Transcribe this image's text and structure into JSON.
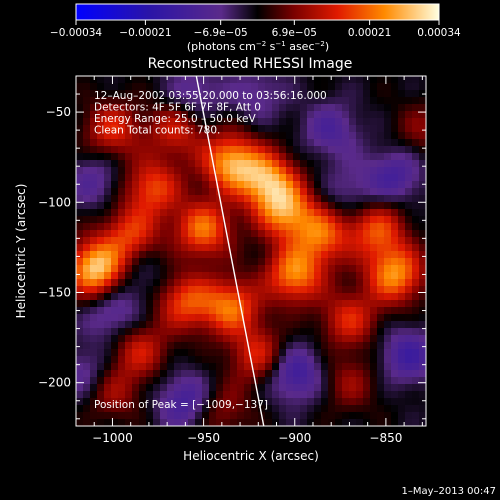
{
  "chart_data": {
    "type": "heatmap",
    "title": "Reconstructed RHESSI Image",
    "xlabel": "Heliocentric X (arcsec)",
    "ylabel": "Heliocentric Y (arcsec)",
    "xlim": [
      -1020,
      -828
    ],
    "ylim": [
      -224,
      -30
    ],
    "xticks": [
      -1000,
      -950,
      -900,
      -850
    ],
    "yticks": [
      -50,
      -100,
      -150,
      -200
    ],
    "xtick_labels": [
      "−1000",
      "−950",
      "−900",
      "−850"
    ],
    "ytick_labels": [
      "−50",
      "−100",
      "−150",
      "−200"
    ],
    "annotations": [
      "12–Aug–2002 03:55:20.000 to 03:56:16.000",
      "Detectors: 4F 5F 6F 7F 8F, Att 0",
      "Energy Range: 25.0 – 50.0 keV",
      "Clean    Total counts: 780."
    ],
    "peak_label": "Position of Peak = [−1009,−137]",
    "peak": [
      -1009,
      -137
    ],
    "limb": [
      [
        -954,
        -30
      ],
      [
        -917,
        -224
      ]
    ],
    "colorbar": {
      "range": [
        -0.00034,
        0.00034
      ],
      "ticks": [
        -0.00034,
        -0.00021,
        -6.9e-05,
        6.9e-05,
        0.00021,
        0.00034
      ],
      "tick_labels": [
        "−0.00034",
        "−0.00021",
        "−6.9e−05",
        "6.9e−05",
        "0.00021",
        "0.00034"
      ],
      "unit": "(photons cm",
      "unit_exp1": "−2",
      "unit_mid": " s",
      "unit_exp2": "−1",
      "unit_end": " asec",
      "unit_exp3": "−2",
      "unit_close": ")"
    },
    "sources": [
      {
        "x": -1009,
        "y": -137,
        "amp": 1.0
      },
      {
        "x": -935,
        "y": -78,
        "amp": 0.85
      },
      {
        "x": -915,
        "y": -88,
        "amp": 0.8
      },
      {
        "x": -905,
        "y": -105,
        "amp": 0.75
      },
      {
        "x": -950,
        "y": -115,
        "amp": 0.72
      },
      {
        "x": -900,
        "y": -140,
        "amp": 0.78
      },
      {
        "x": -885,
        "y": -118,
        "amp": 0.65
      },
      {
        "x": -935,
        "y": -158,
        "amp": 0.7
      },
      {
        "x": -960,
        "y": -155,
        "amp": 0.6
      },
      {
        "x": -978,
        "y": -92,
        "amp": 0.6
      },
      {
        "x": -990,
        "y": -118,
        "amp": 0.55
      },
      {
        "x": -1000,
        "y": -60,
        "amp": 0.5
      },
      {
        "x": -965,
        "y": -60,
        "amp": 0.45
      },
      {
        "x": -845,
        "y": -140,
        "amp": 0.8
      },
      {
        "x": -855,
        "y": -115,
        "amp": 0.6
      },
      {
        "x": -870,
        "y": -165,
        "amp": 0.5
      },
      {
        "x": -920,
        "y": -185,
        "amp": 0.5
      },
      {
        "x": -985,
        "y": -182,
        "amp": 0.45
      },
      {
        "x": -1000,
        "y": -205,
        "amp": 0.35
      },
      {
        "x": -870,
        "y": -200,
        "amp": 0.3
      },
      {
        "x": -940,
        "y": -215,
        "amp": 0.3
      },
      {
        "x": -830,
        "y": -60,
        "amp": 0.25
      },
      {
        "x": -1010,
        "y": -88,
        "amp": -0.3
      },
      {
        "x": -960,
        "y": -210,
        "amp": -0.45
      },
      {
        "x": -900,
        "y": -195,
        "amp": -0.5
      },
      {
        "x": -845,
        "y": -85,
        "amp": -0.4
      },
      {
        "x": -838,
        "y": -185,
        "amp": -0.45
      },
      {
        "x": -880,
        "y": -60,
        "amp": -0.35
      },
      {
        "x": -1000,
        "y": -162,
        "amp": -0.35
      },
      {
        "x": -955,
        "y": -40,
        "amp": -0.3
      },
      {
        "x": -920,
        "y": -40,
        "amp": -0.25
      },
      {
        "x": -1015,
        "y": -195,
        "amp": -0.3
      },
      {
        "x": -985,
        "y": -140,
        "amp": -0.2
      },
      {
        "x": -870,
        "y": -95,
        "amp": -0.25
      }
    ]
  },
  "timestamp": "1–May–2013 00:47"
}
